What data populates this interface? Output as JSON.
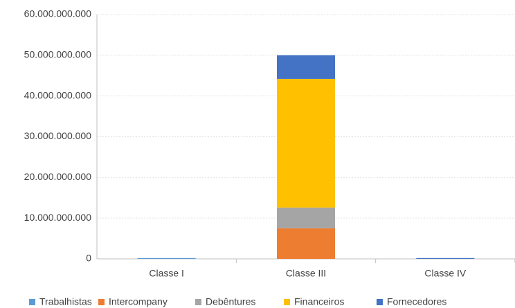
{
  "chart_data": {
    "type": "stacked_bar",
    "categories": [
      "Classe I",
      "Classe III",
      "Classe IV"
    ],
    "series": [
      {
        "name": "Trabalhistas",
        "color": "#5b9bd5",
        "values": [
          200000000,
          0,
          0
        ]
      },
      {
        "name": "Intercompany",
        "color": "#ed7d31",
        "values": [
          0,
          7500000000,
          0
        ]
      },
      {
        "name": "Debêntures",
        "color": "#a5a5a5",
        "values": [
          0,
          5100000000,
          0
        ]
      },
      {
        "name": "Financeiros",
        "color": "#ffc000",
        "values": [
          0,
          31600000000,
          0
        ]
      },
      {
        "name": "Fornecedores",
        "color": "#4472c4",
        "values": [
          0,
          5800000000,
          200000000
        ]
      }
    ],
    "ylim": [
      0,
      60000000000
    ],
    "yticks": [
      0,
      {
        "value": 10000000000,
        "label": "10.000.000.000"
      },
      {
        "value": 20000000000,
        "label": "20.000.000.000"
      },
      {
        "value": 30000000000,
        "label": "30.000.000.000"
      },
      {
        "value": 40000000000,
        "label": "40.000.000.000"
      },
      {
        "value": 50000000000,
        "label": "50.000.000.000"
      },
      {
        "value": 60000000000,
        "label": "60.000.000.000"
      }
    ],
    "grid": true,
    "legend": "bottom"
  }
}
